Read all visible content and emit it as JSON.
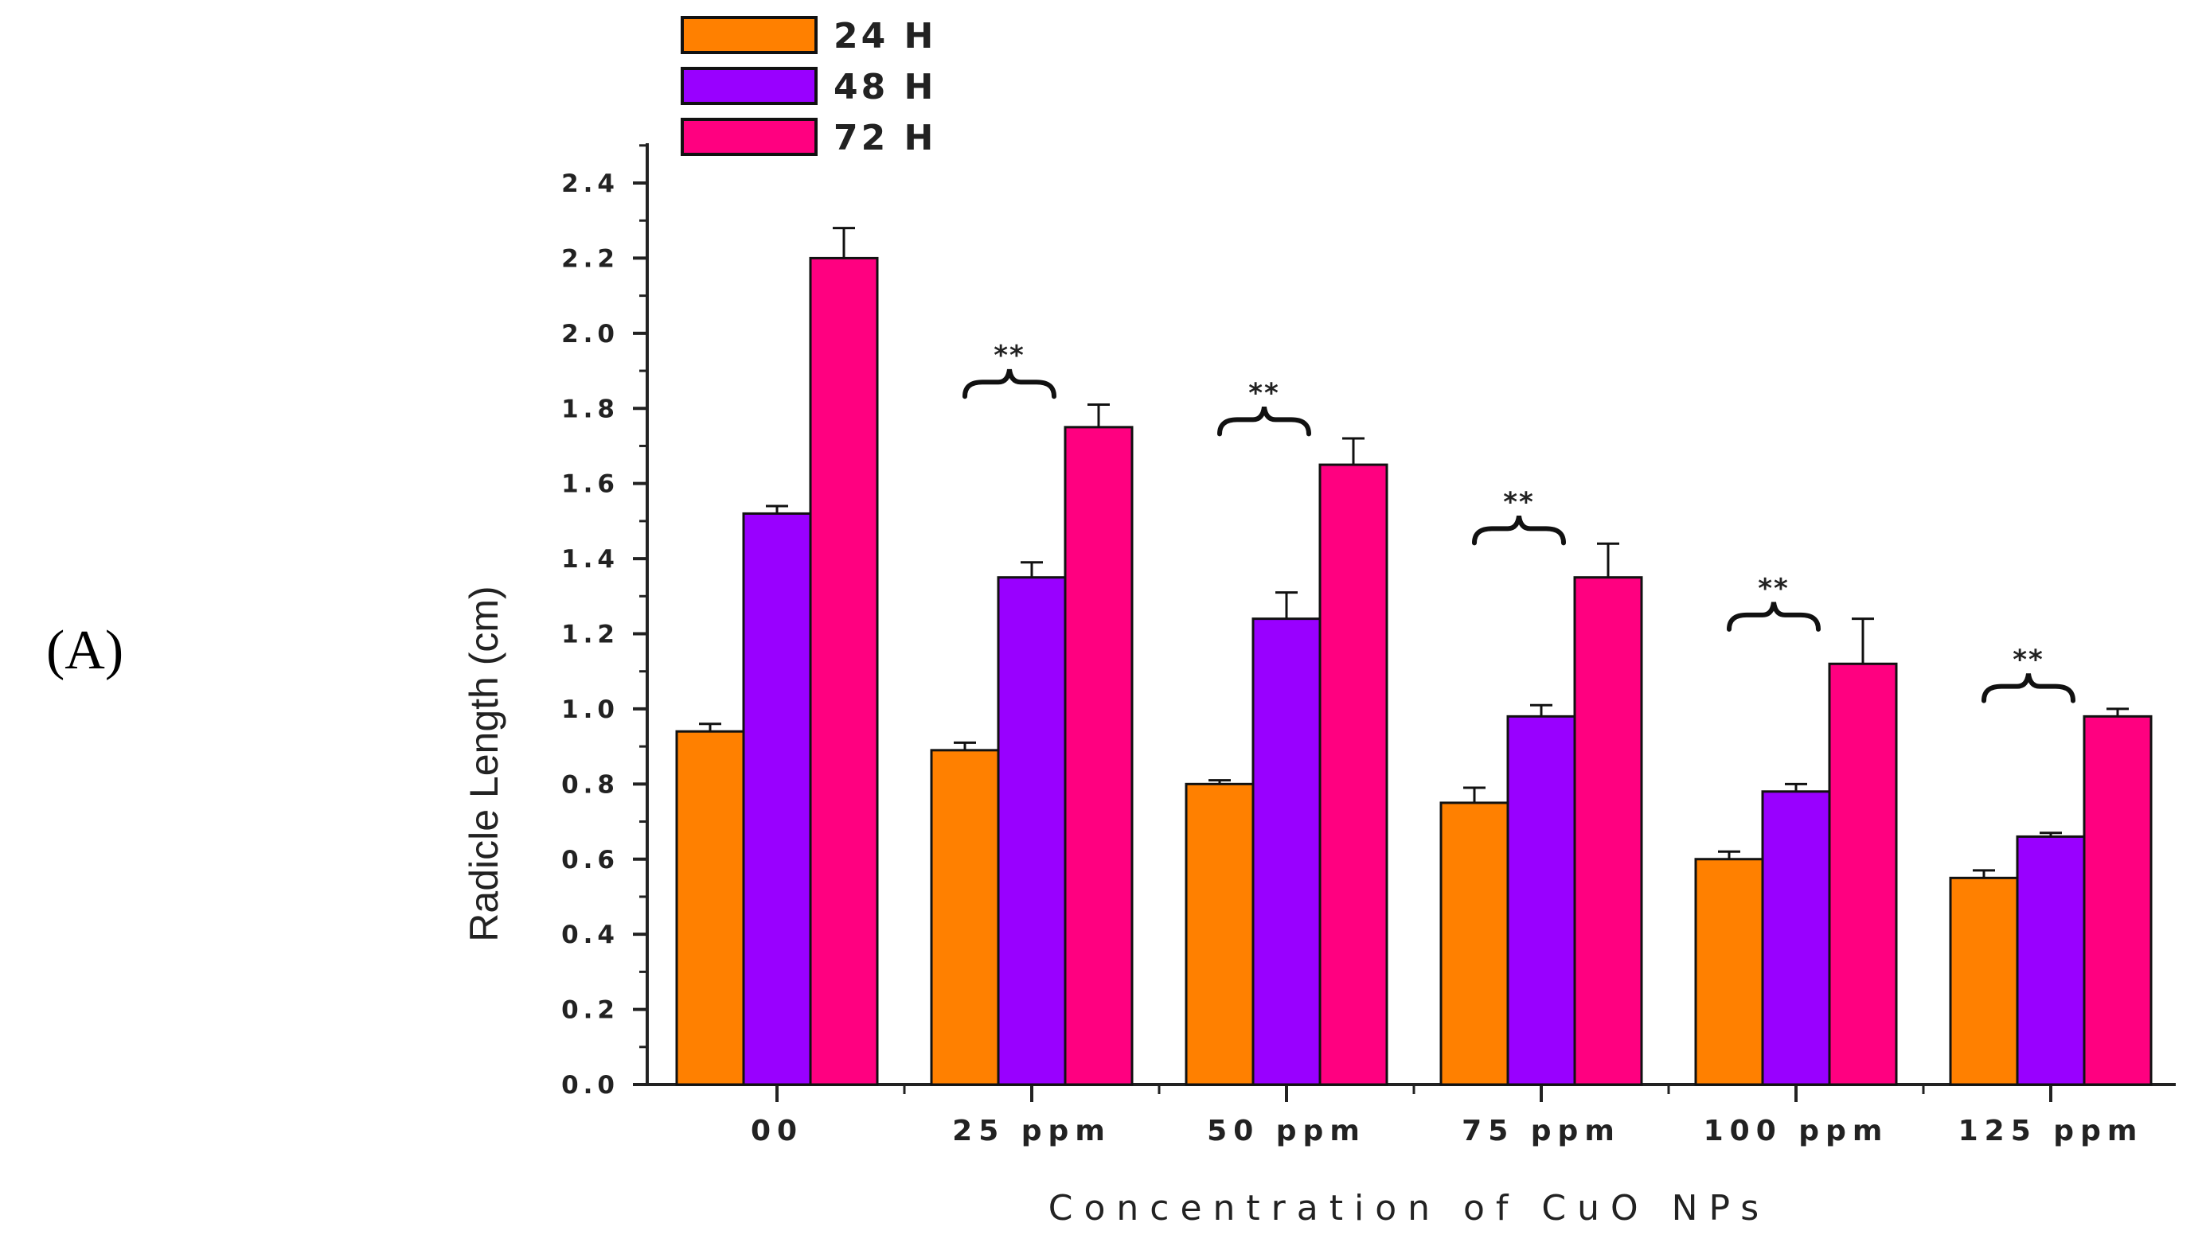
{
  "panel_label": "(A)",
  "chart_data": {
    "type": "bar",
    "title": "",
    "xlabel": "Concentration of CuO NPs",
    "ylabel": "Radicle Length (cm)",
    "ylim": [
      0.0,
      2.4
    ],
    "yticks": [
      "0.0",
      "0.2",
      "0.4",
      "0.6",
      "0.8",
      "1.0",
      "1.2",
      "1.4",
      "1.6",
      "1.8",
      "2.0",
      "2.2",
      "2.4"
    ],
    "categories": [
      "00",
      "25 ppm",
      "50 ppm",
      "75 ppm",
      "100 ppm",
      "125 ppm"
    ],
    "series": [
      {
        "name": "24 H",
        "color": "#FF8000",
        "values": [
          0.94,
          0.89,
          0.8,
          0.75,
          0.6,
          0.55
        ],
        "errors": [
          0.02,
          0.02,
          0.01,
          0.04,
          0.02,
          0.02
        ]
      },
      {
        "name": "48 H",
        "color": "#9900FF",
        "values": [
          1.52,
          1.35,
          1.24,
          0.98,
          0.78,
          0.66
        ],
        "errors": [
          0.02,
          0.04,
          0.07,
          0.03,
          0.02,
          0.01
        ]
      },
      {
        "name": "72 H",
        "color": "#FF0080",
        "values": [
          2.2,
          1.75,
          1.65,
          1.35,
          1.12,
          0.98
        ],
        "errors": [
          0.08,
          0.06,
          0.07,
          0.09,
          0.12,
          0.02
        ]
      }
    ],
    "legend": [
      "24 H",
      "48 H",
      "72 H"
    ],
    "legend_position": "top-left",
    "significance_marks": [
      {
        "category": "25 ppm",
        "label": "**",
        "level": 1.87
      },
      {
        "category": "50 ppm",
        "label": "**",
        "level": 1.77
      },
      {
        "category": "75 ppm",
        "label": "**",
        "level": 1.48
      },
      {
        "category": "100 ppm",
        "label": "**",
        "level": 1.25
      },
      {
        "category": "125 ppm",
        "label": "**",
        "level": 1.06
      }
    ]
  }
}
